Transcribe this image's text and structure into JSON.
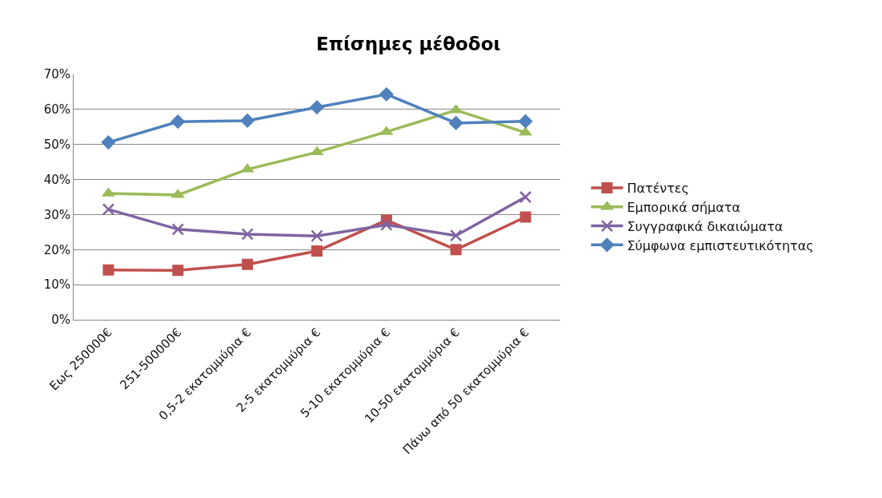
{
  "chart_data": {
    "type": "line",
    "title": "Επίσημες μέθοδοι",
    "categories": [
      "Εως 250000€",
      "251-500000€",
      "0,5-2 εκατομμύρια €",
      "2-5 εκατομμύρια €",
      "5-10 εκατομμύρια €",
      "10-50 εκατομμύρια €",
      "Πάνω από 50 εκατομμύρια €"
    ],
    "series": [
      {
        "name": "Πατέντες",
        "color": "#c0504d",
        "marker": "square",
        "values": [
          14.2,
          14.1,
          15.8,
          19.6,
          28.4,
          20.0,
          29.3
        ]
      },
      {
        "name": "Εμπορικά σήματα",
        "color": "#9bbb59",
        "marker": "triangle",
        "values": [
          36.0,
          35.6,
          42.9,
          47.8,
          53.6,
          59.8,
          53.4
        ]
      },
      {
        "name": "Συγγραφικά δικαιώματα",
        "color": "#8064a2",
        "marker": "cross",
        "values": [
          31.5,
          25.8,
          24.4,
          23.9,
          27.1,
          24.0,
          35.0
        ]
      },
      {
        "name": "Σύμφωνα εμπιστευτικότητας",
        "color": "#4f81bd",
        "marker": "diamond",
        "values": [
          50.6,
          56.5,
          56.8,
          60.6,
          64.3,
          56.1,
          56.6
        ]
      }
    ],
    "ylim": [
      0,
      70
    ],
    "yticks": [
      {
        "value": 0,
        "label": "0%"
      },
      {
        "value": 10,
        "label": "10%"
      },
      {
        "value": 20,
        "label": "20%"
      },
      {
        "value": 30,
        "label": "30%"
      },
      {
        "value": 40,
        "label": "40%"
      },
      {
        "value": 50,
        "label": "50%"
      },
      {
        "value": 60,
        "label": "60%"
      },
      {
        "value": 70,
        "label": "70%"
      }
    ],
    "grid": "y",
    "legend": "right",
    "line_style": "solid"
  }
}
